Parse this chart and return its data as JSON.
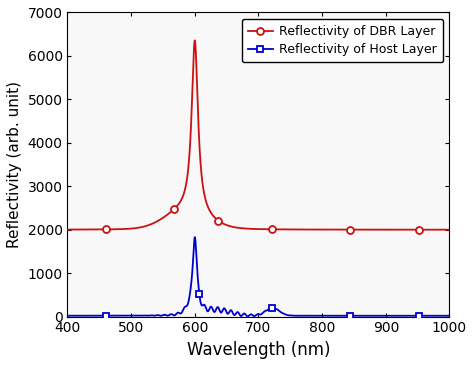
{
  "title": "",
  "xlabel": "Wavelength (nm)",
  "ylabel": "Reflectivity (arb. unit)",
  "xlim": [
    400,
    1000
  ],
  "ylim": [
    0,
    7000
  ],
  "yticks": [
    0,
    1000,
    2000,
    3000,
    4000,
    5000,
    6000,
    7000
  ],
  "xticks": [
    400,
    500,
    600,
    700,
    800,
    900,
    1000
  ],
  "dbr_color": "#cc1111",
  "host_color": "#0000cc",
  "legend_labels": [
    "Reflectivity of DBR Layer",
    "Reflectivity of Host Layer"
  ],
  "dbr_marker_wavelengths": [
    460,
    567,
    637,
    722,
    843,
    952
  ],
  "host_marker_wavelengths": [
    460,
    607,
    722,
    843,
    952
  ],
  "background_color": "#ffffff",
  "plot_bg_color": "#f8f8f8"
}
